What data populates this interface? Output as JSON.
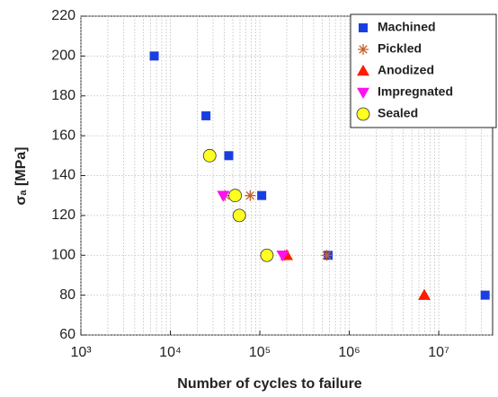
{
  "chart_data": {
    "type": "scatter",
    "xlabel": "Number of cycles to failure",
    "ylabel": "σₐ [MPa]",
    "xscale": "log",
    "xlim": [
      1000,
      40000000
    ],
    "ylim": [
      60,
      220
    ],
    "xticks": [
      {
        "value": 1000,
        "label": "10³"
      },
      {
        "value": 10000,
        "label": "10⁴"
      },
      {
        "value": 100000,
        "label": "10⁵"
      },
      {
        "value": 1000000,
        "label": "10⁶"
      },
      {
        "value": 10000000,
        "label": "10⁷"
      }
    ],
    "yticks": [
      60,
      80,
      100,
      120,
      140,
      160,
      180,
      200,
      220
    ],
    "grid": true,
    "legend": "upper right",
    "series": [
      {
        "name": "Machined",
        "marker": "square",
        "color": "#1a3fe0",
        "x": [
          6600,
          25000,
          45000,
          105000,
          580000,
          33000000
        ],
        "values": [
          200,
          170,
          150,
          130,
          100,
          80
        ]
      },
      {
        "name": "Pickled",
        "marker": "star",
        "color": "#c8602a",
        "x": [
          41000,
          78000,
          190000,
          560000
        ],
        "values": [
          130,
          130,
          100,
          100
        ]
      },
      {
        "name": "Anodized",
        "marker": "triangle-up",
        "color": "#ff1a00",
        "x": [
          200000,
          6900000
        ],
        "values": [
          100,
          80
        ]
      },
      {
        "name": "Impregnated",
        "marker": "triangle-down",
        "color": "#ff10f0",
        "x": [
          39000,
          180000
        ],
        "values": [
          130,
          100
        ]
      },
      {
        "name": "Sealed",
        "marker": "circle",
        "color": "#ffff20",
        "x": [
          27500,
          53000,
          59000,
          120000
        ],
        "values": [
          150,
          130,
          120,
          100
        ]
      }
    ]
  }
}
